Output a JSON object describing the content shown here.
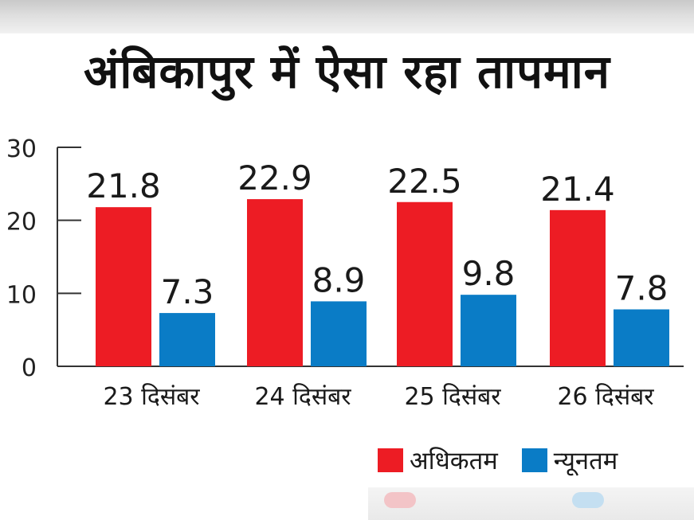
{
  "title": "अंबिकापुर में ऐसा रहा तापमान",
  "chart_data": {
    "type": "bar",
    "title": "अंबिकापुर में ऐसा रहा तापमान",
    "categories": [
      "23 दिसंबर",
      "24 दिसंबर",
      "25 दिसंबर",
      "26 दिसंबर"
    ],
    "series": [
      {
        "name": "अधिकतम",
        "values": [
          21.8,
          22.9,
          22.5,
          21.4
        ],
        "color": "#ed1c24"
      },
      {
        "name": "न्यूनतम",
        "values": [
          7.3,
          8.9,
          9.8,
          7.8
        ],
        "color": "#0a7cc6"
      }
    ],
    "labels": [
      [
        "21.8",
        "22.9",
        "22.5",
        "21.4"
      ],
      [
        "7.3",
        "8.9",
        "9.8",
        "7.8"
      ]
    ],
    "yticks": [
      "30",
      "20",
      "10",
      "0"
    ],
    "ytick_values": [
      30,
      20,
      10,
      0
    ],
    "ylim": [
      0,
      30
    ],
    "xlabel": "",
    "ylabel": "",
    "grid": false,
    "legend_position": "bottom-right"
  }
}
